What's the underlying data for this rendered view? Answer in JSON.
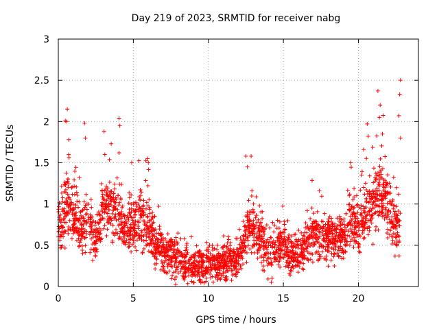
{
  "chart_data": {
    "type": "scatter",
    "title": "Day 219 of 2023, SRMTID for receiver nabg",
    "xlabel": "GPS time / hours",
    "ylabel": "SRMTID / TECUs",
    "xlim": [
      0,
      24
    ],
    "ylim": [
      0,
      3
    ],
    "xticks": [
      0,
      5,
      10,
      15,
      20
    ],
    "xtick_labels": [
      "0",
      "5",
      "10",
      "15",
      "20"
    ],
    "yticks": [
      0,
      0.5,
      1,
      1.5,
      2,
      2.5,
      3
    ],
    "ytick_labels": [
      "0",
      "0.5",
      "1",
      "1.5",
      "2",
      "2.5",
      "3"
    ],
    "grid": true,
    "marker": "+",
    "series": [
      {
        "name": "SRMTID",
        "color": "#ff0000",
        "trend": {
          "x": [
            0,
            0.5,
            1,
            1.5,
            2,
            2.5,
            3,
            3.5,
            4,
            4.5,
            5,
            5.5,
            6,
            6.5,
            7,
            7.5,
            8,
            8.5,
            9,
            9.5,
            10,
            10.5,
            11,
            11.5,
            12,
            12.5,
            13,
            13.5,
            14,
            14.5,
            15,
            15.5,
            16,
            16.5,
            17,
            17.5,
            18,
            18.5,
            19,
            19.5,
            20,
            20.5,
            21,
            21.5,
            22,
            22.5,
            22.8
          ],
          "y": [
            0.7,
            1.0,
            0.85,
            0.7,
            0.75,
            0.55,
            0.95,
            1.0,
            0.85,
            0.7,
            0.75,
            0.8,
            0.7,
            0.55,
            0.42,
            0.38,
            0.32,
            0.28,
            0.27,
            0.26,
            0.3,
            0.3,
            0.3,
            0.3,
            0.35,
            0.6,
            0.7,
            0.6,
            0.4,
            0.5,
            0.5,
            0.4,
            0.4,
            0.5,
            0.6,
            0.6,
            0.6,
            0.55,
            0.6,
            0.85,
            0.7,
            0.95,
            1.0,
            1.2,
            0.95,
            0.7,
            0.8
          ]
        },
        "peaks": [
          {
            "x": 0.6,
            "y": 2.15
          },
          {
            "x": 0.55,
            "y": 2.0
          },
          {
            "x": 0.7,
            "y": 1.78
          },
          {
            "x": 1.75,
            "y": 1.98
          },
          {
            "x": 1.8,
            "y": 1.8
          },
          {
            "x": 3.05,
            "y": 1.88
          },
          {
            "x": 3.1,
            "y": 1.6
          },
          {
            "x": 4.05,
            "y": 2.04
          },
          {
            "x": 4.1,
            "y": 1.95
          },
          {
            "x": 4.05,
            "y": 1.62
          },
          {
            "x": 5.95,
            "y": 1.55
          },
          {
            "x": 6.0,
            "y": 1.5
          },
          {
            "x": 12.5,
            "y": 1.58
          },
          {
            "x": 12.85,
            "y": 1.58
          },
          {
            "x": 12.6,
            "y": 1.45
          },
          {
            "x": 14.2,
            "y": 0.05
          },
          {
            "x": 14.25,
            "y": 0.1
          },
          {
            "x": 21.3,
            "y": 2.37
          },
          {
            "x": 21.45,
            "y": 2.2
          },
          {
            "x": 21.4,
            "y": 2.05
          },
          {
            "x": 21.6,
            "y": 1.85
          },
          {
            "x": 22.8,
            "y": 2.5
          },
          {
            "x": 22.75,
            "y": 2.33
          },
          {
            "x": 22.7,
            "y": 2.07
          },
          {
            "x": 22.8,
            "y": 1.8
          },
          {
            "x": 20.35,
            "y": 1.66
          },
          {
            "x": 19.5,
            "y": 1.5
          },
          {
            "x": 17.4,
            "y": 1.16
          },
          {
            "x": 16.9,
            "y": 0.95
          }
        ]
      }
    ]
  }
}
